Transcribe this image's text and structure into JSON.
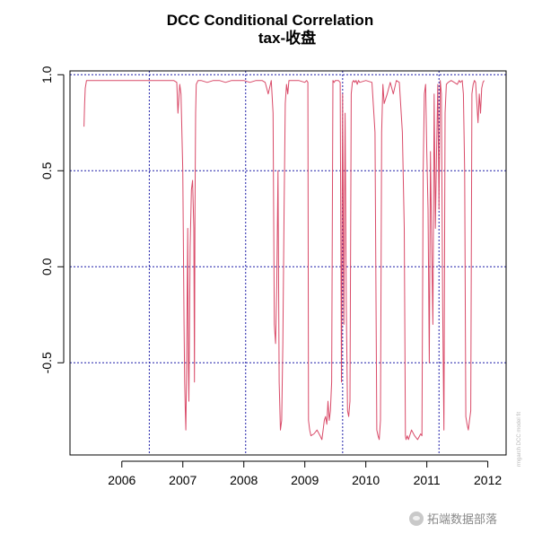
{
  "chart_data": {
    "type": "line",
    "title": "DCC Conditional Correlation",
    "subtitle": "tax-收盘",
    "xlabel": "",
    "ylabel": "",
    "xlim": [
      2005.15,
      2012.3
    ],
    "ylim": [
      -0.98,
      1.02
    ],
    "x_ticks": [
      2006,
      2007,
      2008,
      2009,
      2010,
      2011,
      2012
    ],
    "y_ticks": [
      1.0,
      0.5,
      0.0,
      -0.5
    ],
    "y_tick_labels": [
      "1.0",
      "0.5",
      "0.0",
      "-0.5"
    ],
    "grid_x": [
      2006.45,
      2008.03,
      2009.62,
      2011.2
    ],
    "grid_y": [
      1.0,
      0.5,
      0.0,
      -0.5
    ],
    "side_note": "rmgarch    DCC model fit",
    "colors": {
      "series": "#d94a68",
      "grid": "#1f1fa8",
      "axis": "#000000"
    },
    "series": [
      {
        "name": "DCC correlation",
        "x": [
          2005.38,
          2005.39,
          2005.4,
          2005.42,
          2005.5,
          2005.8,
          2006.2,
          2006.6,
          2006.85,
          2006.9,
          2006.92,
          2006.95,
          2006.97,
          2007.0,
          2007.02,
          2007.03,
          2007.04,
          2007.05,
          2007.06,
          2007.07,
          2007.08,
          2007.09,
          2007.1,
          2007.12,
          2007.14,
          2007.16,
          2007.18,
          2007.19,
          2007.2,
          2007.21,
          2007.22,
          2007.25,
          2007.3,
          2007.4,
          2007.5,
          2007.6,
          2007.7,
          2007.8,
          2007.9,
          2008.0,
          2008.1,
          2008.2,
          2008.3,
          2008.35,
          2008.4,
          2008.45,
          2008.48,
          2008.5,
          2008.52,
          2008.54,
          2008.56,
          2008.58,
          2008.6,
          2008.62,
          2008.64,
          2008.66,
          2008.68,
          2008.7,
          2008.72,
          2008.74,
          2008.8,
          2008.9,
          2009.0,
          2009.03,
          2009.05,
          2009.06,
          2009.08,
          2009.1,
          2009.15,
          2009.2,
          2009.25,
          2009.28,
          2009.3,
          2009.32,
          2009.34,
          2009.36,
          2009.38,
          2009.4,
          2009.42,
          2009.44,
          2009.46,
          2009.48,
          2009.5,
          2009.52,
          2009.55,
          2009.58,
          2009.6,
          2009.62,
          2009.64,
          2009.66,
          2009.68,
          2009.7,
          2009.72,
          2009.74,
          2009.76,
          2009.78,
          2009.8,
          2009.82,
          2009.84,
          2009.86,
          2009.88,
          2009.9,
          2010.0,
          2010.1,
          2010.15,
          2010.18,
          2010.2,
          2010.22,
          2010.24,
          2010.26,
          2010.28,
          2010.3,
          2010.35,
          2010.4,
          2010.45,
          2010.5,
          2010.55,
          2010.6,
          2010.63,
          2010.65,
          2010.66,
          2010.68,
          2010.7,
          2010.75,
          2010.8,
          2010.85,
          2010.9,
          2010.92,
          2010.94,
          2010.96,
          2010.98,
          2011.0,
          2011.02,
          2011.04,
          2011.06,
          2011.08,
          2011.1,
          2011.12,
          2011.14,
          2011.16,
          2011.18,
          2011.2,
          2011.22,
          2011.24,
          2011.26,
          2011.28,
          2011.3,
          2011.32,
          2011.35,
          2011.4,
          2011.45,
          2011.5,
          2011.53,
          2011.55,
          2011.58,
          2011.6,
          2011.62,
          2011.64,
          2011.66,
          2011.68,
          2011.7,
          2011.72,
          2011.74,
          2011.76,
          2011.78,
          2011.8,
          2011.82,
          2011.84,
          2011.86,
          2011.88,
          2011.9,
          2011.92,
          2011.94
        ],
        "y": [
          0.73,
          0.85,
          0.93,
          0.97,
          0.97,
          0.97,
          0.97,
          0.97,
          0.97,
          0.96,
          0.8,
          0.95,
          0.9,
          0.5,
          -0.3,
          -0.6,
          -0.75,
          -0.85,
          -0.6,
          -0.2,
          0.2,
          -0.5,
          -0.7,
          0.1,
          0.4,
          0.45,
          0.2,
          -0.6,
          0.3,
          0.8,
          0.95,
          0.97,
          0.97,
          0.96,
          0.97,
          0.97,
          0.96,
          0.97,
          0.97,
          0.97,
          0.96,
          0.97,
          0.97,
          0.96,
          0.9,
          0.97,
          0.8,
          -0.3,
          -0.4,
          -0.1,
          0.5,
          -0.6,
          -0.85,
          -0.8,
          -0.4,
          0.3,
          0.85,
          0.95,
          0.9,
          0.97,
          0.97,
          0.97,
          0.96,
          0.97,
          0.96,
          -0.8,
          -0.85,
          -0.88,
          -0.87,
          -0.85,
          -0.88,
          -0.9,
          -0.85,
          -0.8,
          -0.78,
          -0.82,
          -0.7,
          -0.8,
          -0.75,
          -0.6,
          0.97,
          0.96,
          0.97,
          0.97,
          0.97,
          0.96,
          -0.6,
          0.9,
          -0.3,
          0.8,
          -0.2,
          -0.75,
          -0.78,
          -0.7,
          0.9,
          0.96,
          0.97,
          0.96,
          0.97,
          0.95,
          0.97,
          0.96,
          0.97,
          0.96,
          0.7,
          -0.85,
          -0.88,
          -0.9,
          -0.8,
          0.7,
          0.95,
          0.85,
          0.9,
          0.96,
          0.9,
          0.97,
          0.96,
          0.7,
          0.2,
          -0.88,
          -0.9,
          -0.88,
          -0.9,
          -0.85,
          -0.88,
          -0.9,
          -0.87,
          -0.88,
          0.5,
          0.9,
          0.95,
          0.6,
          0.3,
          -0.5,
          0.6,
          0.1,
          -0.3,
          0.9,
          0.2,
          0.6,
          0.95,
          0.3,
          0.97,
          0.9,
          -0.2,
          -0.85,
          0.8,
          0.95,
          0.96,
          0.97,
          0.96,
          0.95,
          0.97,
          0.96,
          0.97,
          0.9,
          0.5,
          -0.78,
          -0.82,
          -0.85,
          -0.8,
          -0.75,
          0.9,
          0.95,
          0.97,
          0.96,
          0.85,
          0.75,
          0.9,
          0.8,
          0.93,
          0.96,
          0.97
        ]
      }
    ]
  },
  "watermark": {
    "text": "拓端数据部落"
  }
}
